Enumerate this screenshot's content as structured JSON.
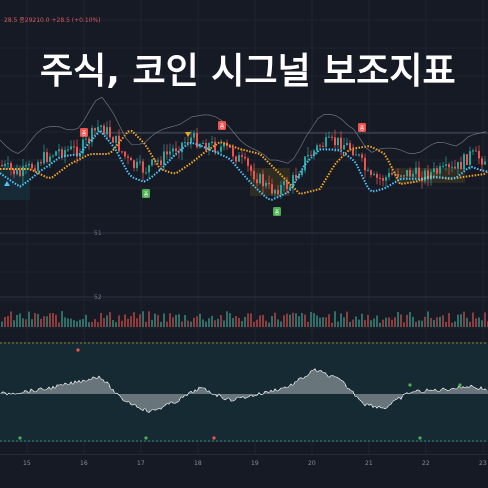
{
  "header": {
    "ticker_text": "28.5 종29210.0 +28.5 (+0.10%)",
    "headline": "주식, 코인 시그널 보조지표"
  },
  "price_scale": {
    "labels": [
      "51",
      "52"
    ]
  },
  "signals": {
    "sell_marker_label": "종",
    "buy_marker_label": "종"
  },
  "time_axis": {
    "labels": [
      "15",
      "16",
      "17",
      "18",
      "19",
      "20",
      "21",
      "22",
      "23"
    ]
  },
  "colors": {
    "background": "#161a25",
    "bull_candle": "#26a69a",
    "bear_candle": "#ef5350",
    "fast_ma": "#4fc3f7",
    "slow_ma": "#f5a623",
    "sell_marker": "#ef5350",
    "buy_marker": "#4caf50",
    "oscillator": "#e6e6e6"
  }
}
